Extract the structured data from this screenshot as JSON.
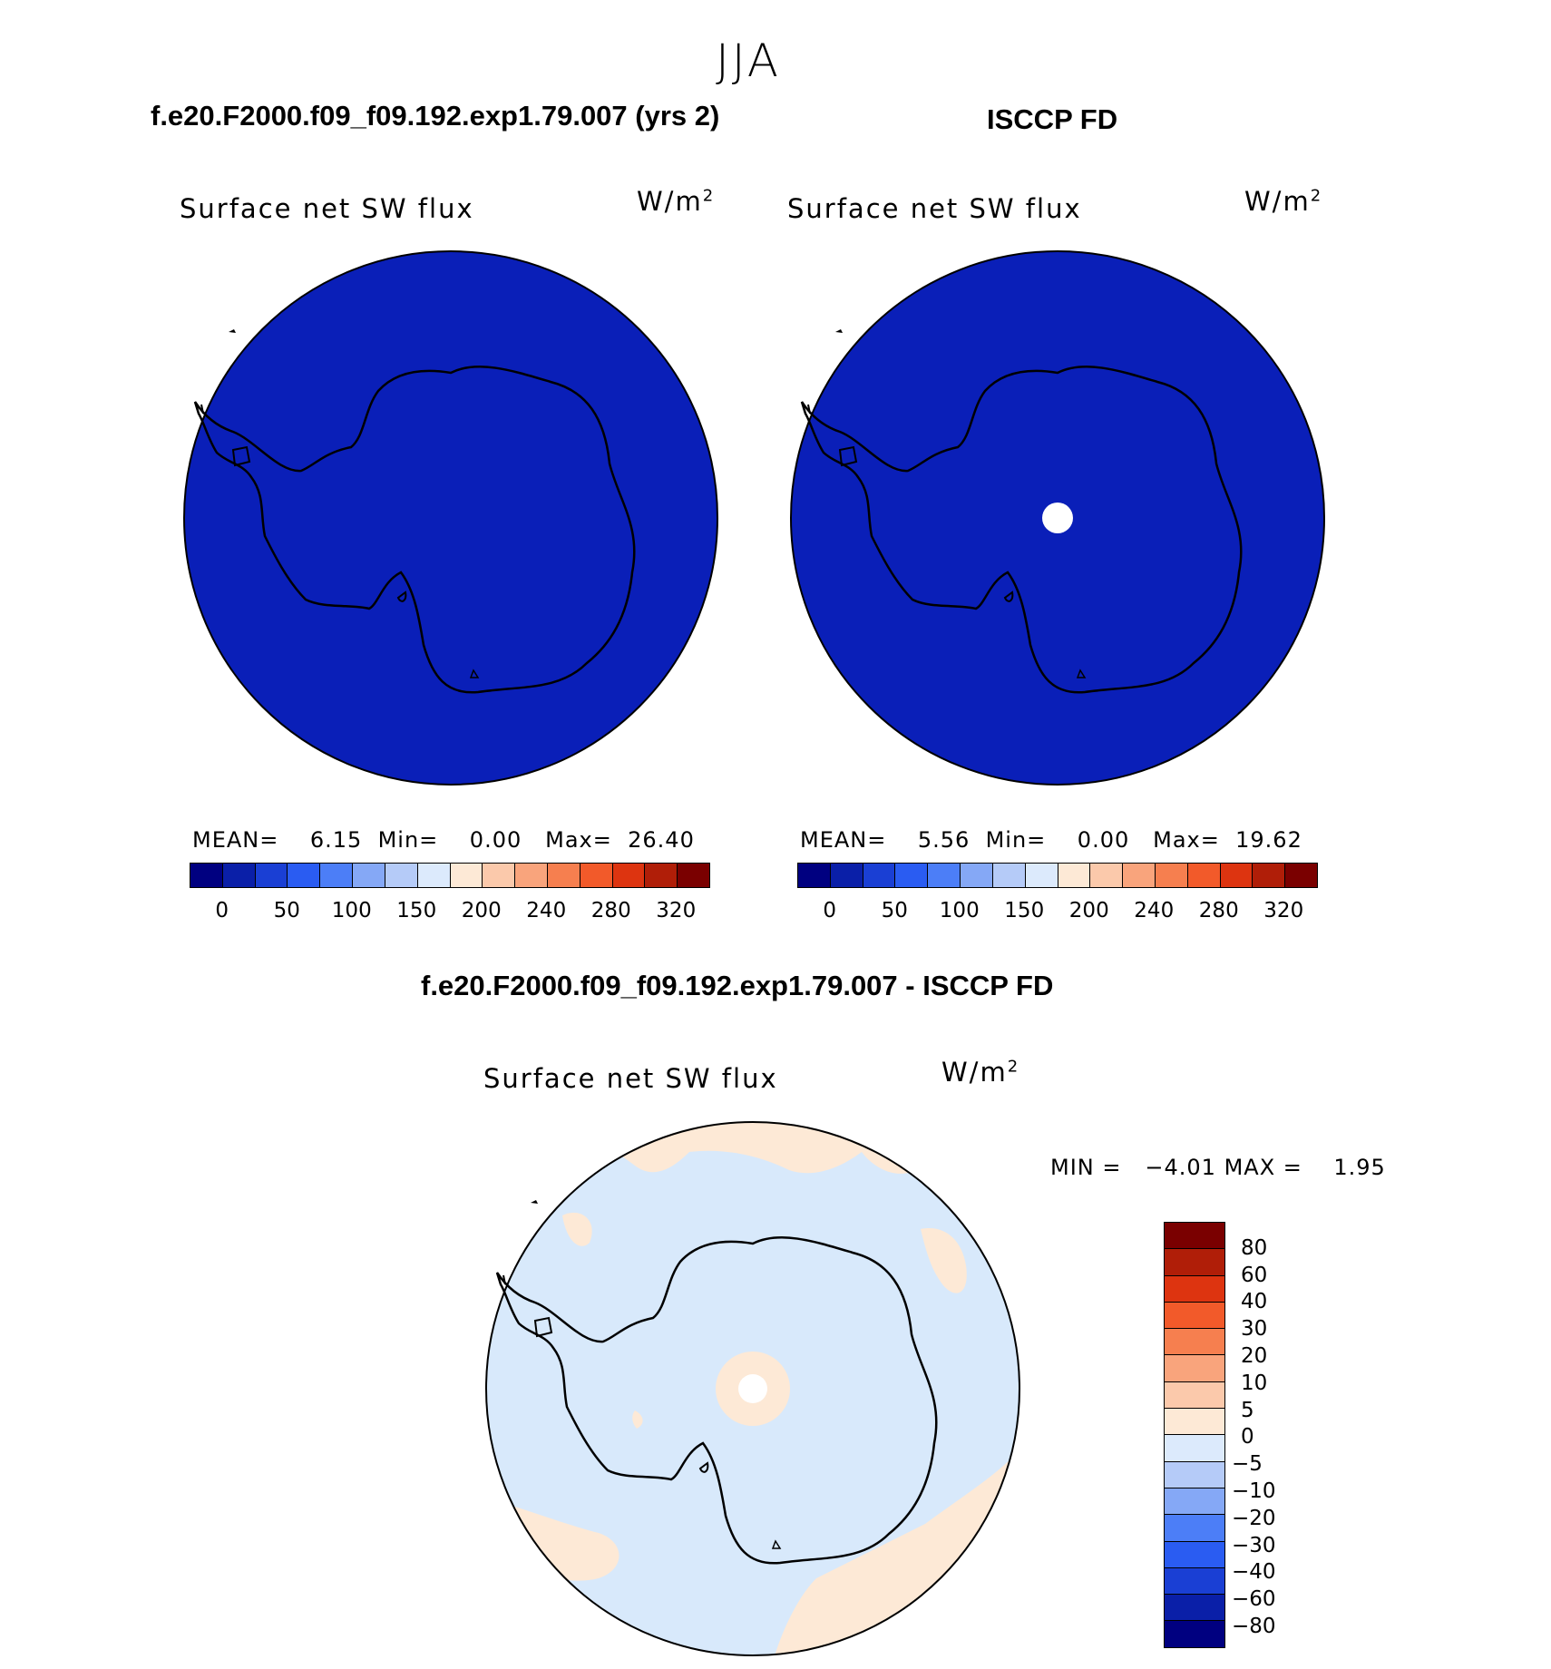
{
  "figure_title": "JJA",
  "panels": [
    {
      "title": "f.e20.F2000.f09_f09.192.exp1.79.007 (yrs 2)",
      "variable": "Surface net SW flux",
      "unit_base": "W/m",
      "unit_exp": "2",
      "stats": {
        "mean_label": "MEAN=",
        "mean": "6.15",
        "min_label": "Min=",
        "min": "0.00",
        "max_label": "Max=",
        "max": "26.40"
      }
    },
    {
      "title": "ISCCP FD",
      "variable": "Surface net SW flux",
      "unit_base": "W/m",
      "unit_exp": "2",
      "stats": {
        "mean_label": "MEAN=",
        "mean": "5.56",
        "min_label": "Min=",
        "min": "0.00",
        "max_label": "Max=",
        "max": "19.62"
      }
    },
    {
      "title": "f.e20.F2000.f09_f09.192.exp1.79.007 - ISCCP FD",
      "variable": "Surface net SW flux",
      "unit_base": "W/m",
      "unit_exp": "2",
      "stats": {
        "min_label": "MIN =",
        "min": "−4.01",
        "max_label": "MAX =",
        "max": "1.95"
      }
    }
  ],
  "colorbar_abs": {
    "colors": [
      "#000080",
      "#0a1fa8",
      "#1a3fd4",
      "#2a5cf2",
      "#4c7ef7",
      "#85a8f6",
      "#b5cbf8",
      "#dceafc",
      "#fde9d6",
      "#fbc9ab",
      "#f9a47c",
      "#f67f4f",
      "#f25a2a",
      "#dd3410",
      "#b01e08",
      "#7a0000"
    ],
    "tick_labels": [
      "0",
      "50",
      "100",
      "150",
      "200",
      "240",
      "280",
      "320"
    ]
  },
  "colorbar_diff": {
    "colors_top_to_bottom": [
      "#7a0000",
      "#b01e08",
      "#dd3410",
      "#f25a2a",
      "#f67f4f",
      "#f9a47c",
      "#fbc9ab",
      "#fde9d6",
      "#dceafc",
      "#b5cbf8",
      "#85a8f6",
      "#4c7ef7",
      "#2a5cf2",
      "#1a3fd4",
      "#0a1fa8",
      "#000080"
    ],
    "tick_labels_top_to_bottom": [
      "80",
      "60",
      "40",
      "30",
      "20",
      "10",
      "5",
      "0",
      "−5",
      "−10",
      "−20",
      "−30",
      "−40",
      "−60",
      "−80"
    ]
  },
  "map_colors": {
    "model_fill": "#0a1fb8",
    "obs_fill": "#0a1fb8",
    "diff_fill": "#d8e9fb",
    "diff_positive": "#fde9d6"
  }
}
